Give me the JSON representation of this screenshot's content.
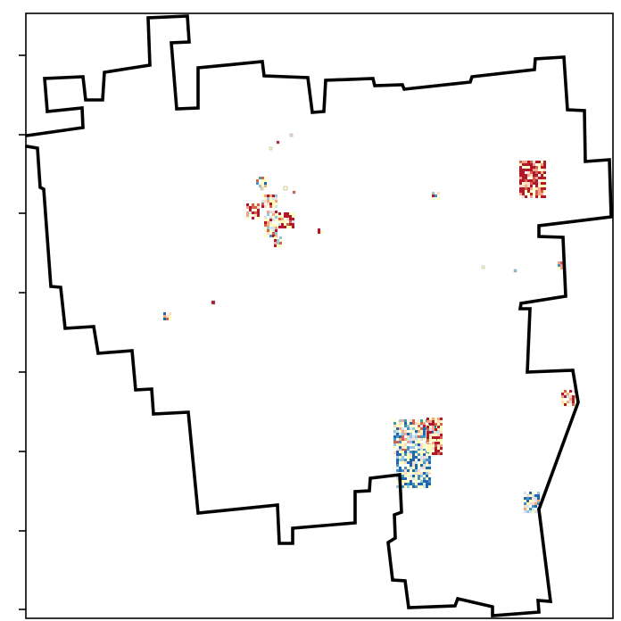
{
  "map": {
    "title": "",
    "colors": {
      "boundary": "#000000",
      "frame": "#000000",
      "background": "#ffffff",
      "raster_palette": [
        "#b2182b",
        "#d6604d",
        "#f4a582",
        "#fddbc7",
        "#ffffbf",
        "#d1e5f0",
        "#92c5de",
        "#4393c3",
        "#2166ac"
      ]
    },
    "y_axis_ticks": 8,
    "y_axis_tick_labels": [],
    "x_axis_tick_labels": [],
    "legend": null
  }
}
